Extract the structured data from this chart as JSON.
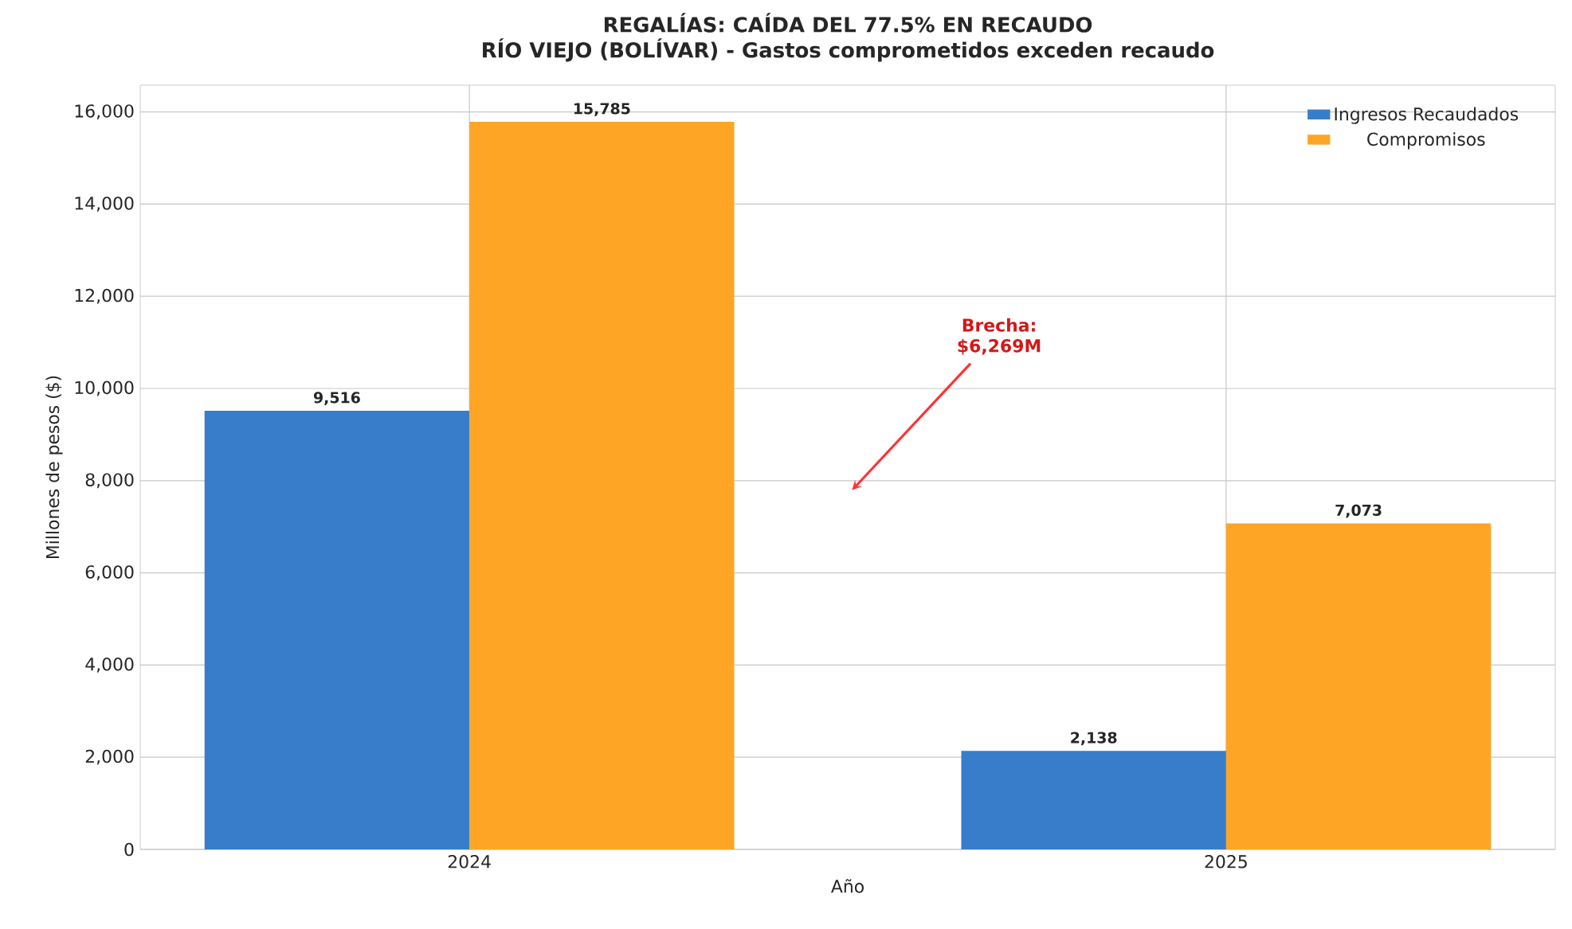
{
  "chart_data": {
    "type": "bar",
    "title": "REGALÍAS: CAÍDA DEL 77.5% EN RECAUDO",
    "subtitle": "RÍO VIEJO (BOLÍVAR) - Gastos comprometidos exceden recaudo",
    "xlabel": "Año",
    "ylabel": "Millones de pesos ($)",
    "categories": [
      "2024",
      "2025"
    ],
    "series": [
      {
        "name": "Ingresos Recaudados",
        "color": "#377dca",
        "values": [
          9516,
          2138
        ],
        "value_labels": [
          "9,516",
          "2,138"
        ]
      },
      {
        "name": "Compromisos",
        "color": "#ffa526",
        "values": [
          15785,
          7073
        ],
        "value_labels": [
          "15,785",
          "7,073"
        ]
      }
    ],
    "ylim": [
      0,
      16580
    ],
    "yticks": [
      0,
      {
        "value": 2000,
        "label": "2,000"
      },
      {
        "value": 4000,
        "label": "4,000"
      },
      {
        "value": 6000,
        "label": "6,000"
      },
      {
        "value": 8000,
        "label": "8,000"
      },
      {
        "value": 10000,
        "label": "10,000"
      },
      {
        "value": 12000,
        "label": "12,000"
      },
      {
        "value": 14000,
        "label": "14,000"
      },
      {
        "value": 16000,
        "label": "16,000"
      }
    ],
    "annotations": [
      "Brecha: $6,269M"
    ],
    "grid": true,
    "legend": "top right"
  }
}
